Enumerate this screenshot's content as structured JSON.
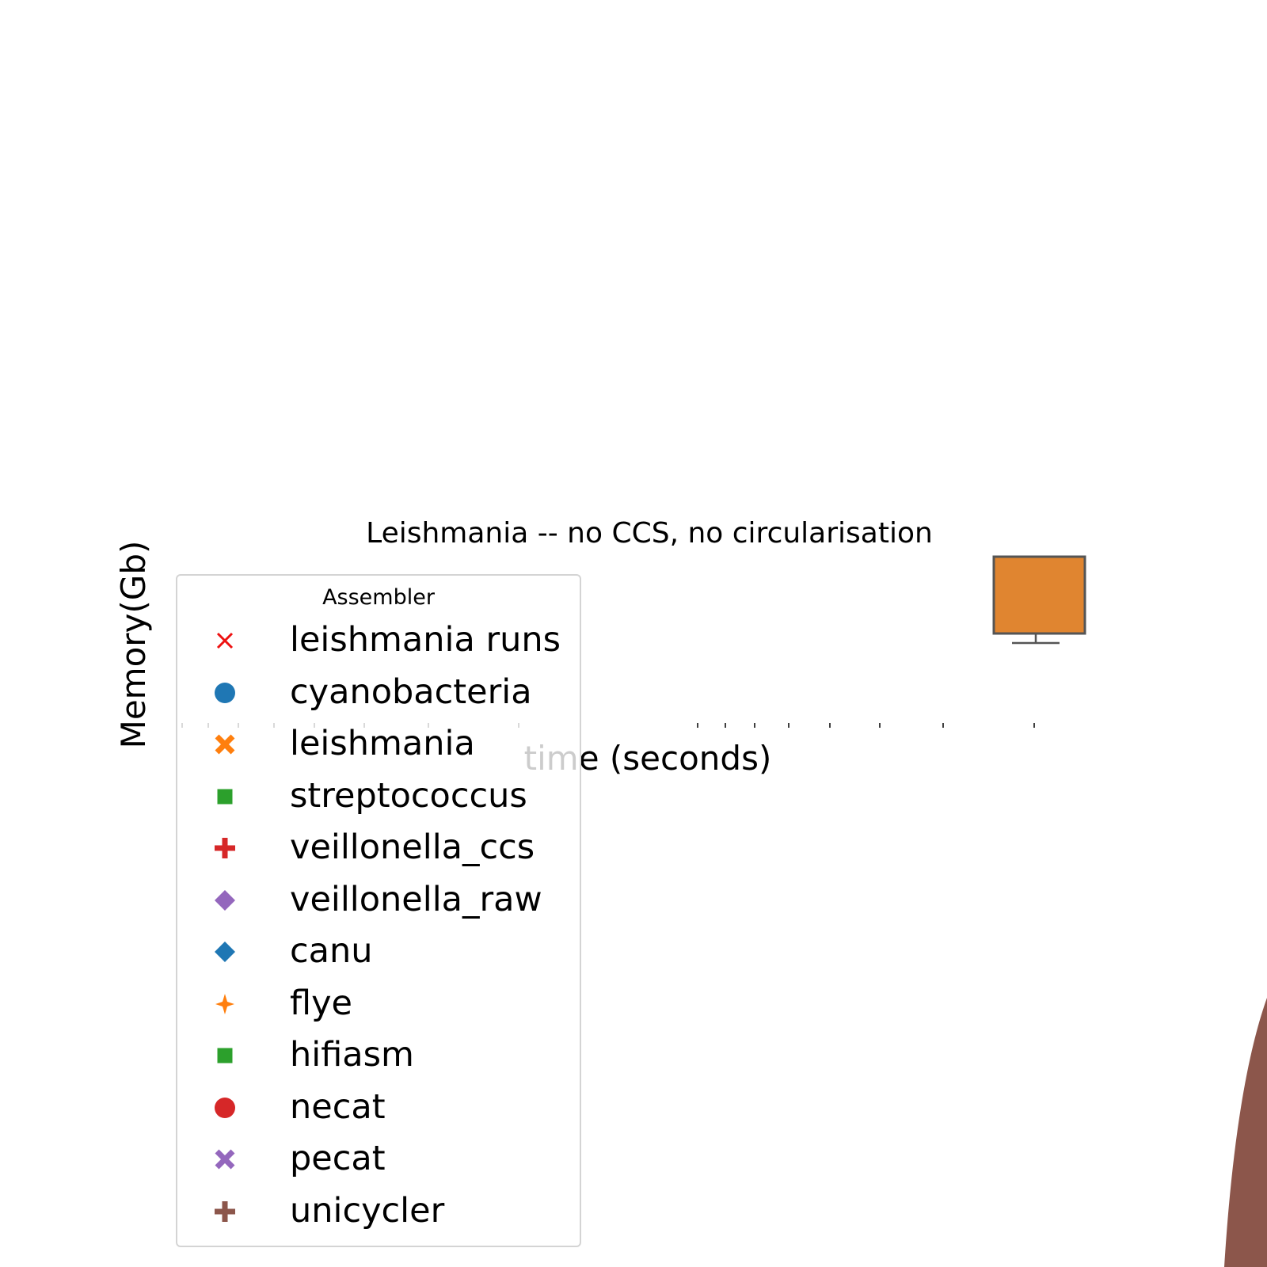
{
  "chart_data": {
    "type": "scatter",
    "title": "Leishmania -- no CCS, no circularisation",
    "xlabel": "time (seconds)",
    "ylabel": "Memory(Gb)",
    "xscale": "log",
    "legend": {
      "title": "Assembler",
      "placement": "lower-left",
      "entries": [
        {
          "label": "leishmania runs",
          "marker": "x",
          "color": "#ee1111"
        },
        {
          "label": "cyanobacteria",
          "marker": "circle",
          "color": "#1f77b4"
        },
        {
          "label": "leishmania",
          "marker": "thick-x",
          "color": "#ff7f0e"
        },
        {
          "label": "streptococcus",
          "marker": "square",
          "color": "#2ca02c"
        },
        {
          "label": "veillonella_ccs",
          "marker": "plus",
          "color": "#d62728"
        },
        {
          "label": "veillonella_raw",
          "marker": "diamond",
          "color": "#9467bd"
        },
        {
          "label": "canu",
          "marker": "diamond",
          "color": "#1f77b4"
        },
        {
          "label": "flye",
          "marker": "star",
          "color": "#ff7f0e"
        },
        {
          "label": "hifiasm",
          "marker": "square",
          "color": "#2ca02c"
        },
        {
          "label": "necat",
          "marker": "circle",
          "color": "#d62728"
        },
        {
          "label": "pecat",
          "marker": "thick-x",
          "color": "#9467bd"
        },
        {
          "label": "unicycler",
          "marker": "plus",
          "color": "#8c564b"
        }
      ]
    },
    "boxplot": {
      "color": "#e08530",
      "edge_color": "#555555"
    },
    "decorative_shape_color": "#8c564b",
    "grid": false
  }
}
